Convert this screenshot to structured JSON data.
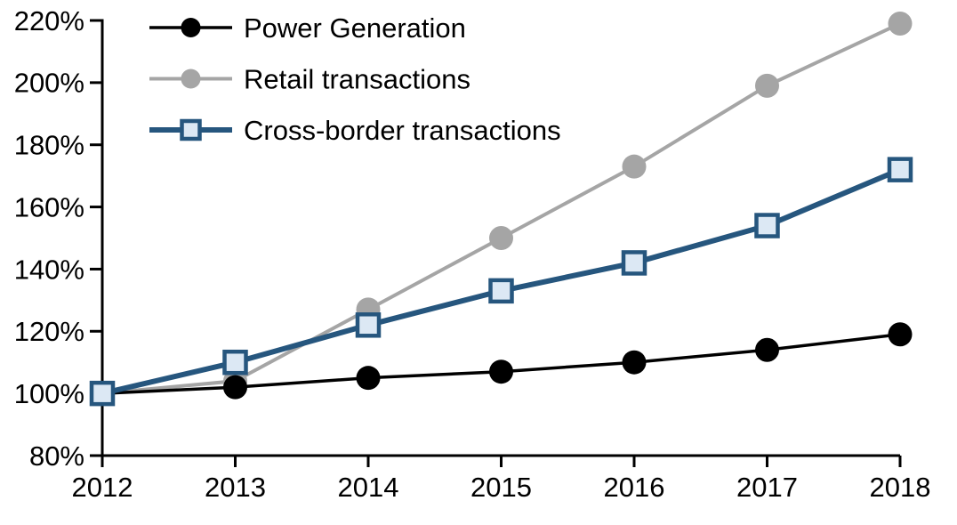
{
  "chart_data": {
    "type": "line",
    "title": "",
    "xlabel": "",
    "ylabel": "",
    "x": [
      2012,
      2013,
      2014,
      2015,
      2016,
      2017,
      2018
    ],
    "x_tick_labels": [
      "2012",
      "2013",
      "2014",
      "2015",
      "2016",
      "2017",
      "2018"
    ],
    "y_axis": {
      "min": 80,
      "max": 220,
      "step": 20,
      "suffix": "%",
      "tick_labels": [
        "80%",
        "100%",
        "120%",
        "140%",
        "160%",
        "180%",
        "200%",
        "220%"
      ]
    },
    "grid": false,
    "legend_position": "top-left-inside",
    "axis_color": "#000000",
    "series": [
      {
        "name": "Power Generation",
        "values": [
          100,
          102,
          105,
          107,
          110,
          114,
          119
        ],
        "color": "#000000",
        "marker": "circle",
        "marker_fill": "#000000",
        "line_width": 3.5
      },
      {
        "name": "Retail transactions",
        "values": [
          100,
          104,
          127,
          150,
          173,
          199,
          219
        ],
        "color": "#A5A5A5",
        "marker": "circle",
        "marker_fill": "#A5A5A5",
        "line_width": 4
      },
      {
        "name": "Cross-border transactions",
        "values": [
          100,
          110,
          122,
          133,
          142,
          154,
          172
        ],
        "color": "#26567E",
        "marker": "square",
        "marker_fill": "#DCE8F4",
        "line_width": 6
      }
    ]
  }
}
